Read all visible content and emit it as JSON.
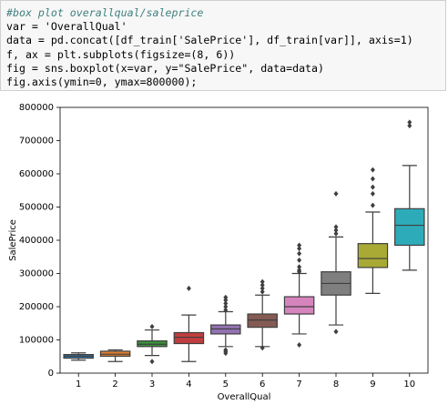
{
  "code": [
    "#box plot overallqual/saleprice",
    "var = 'OverallQual'",
    "data = pd.concat([df_train['SalePrice'], df_train[var]], axis=1)",
    "f, ax = plt.subplots(figsize=(8, 6))",
    "fig = sns.boxplot(x=var, y=\"SalePrice\", data=data)",
    "fig.axis(ymin=0, ymax=800000);"
  ],
  "chart_data": {
    "type": "box",
    "xlabel": "OverallQual",
    "ylabel": "SalePrice",
    "categories": [
      "1",
      "2",
      "3",
      "4",
      "5",
      "6",
      "7",
      "8",
      "9",
      "10"
    ],
    "colors": [
      "#3274a1",
      "#e1812c",
      "#3a923a",
      "#c03d3e",
      "#9372b2",
      "#845b53",
      "#d684bd",
      "#7f7f7f",
      "#a9aa35",
      "#2eabb8"
    ],
    "q1": [
      45000,
      51000,
      80000,
      89000,
      118000,
      138000,
      178000,
      235000,
      318000,
      385000
    ],
    "median": [
      51000,
      57000,
      87000,
      108000,
      133000,
      160000,
      200000,
      270000,
      345000,
      445000
    ],
    "q3": [
      56000,
      66000,
      97000,
      122000,
      145000,
      178000,
      230000,
      305000,
      390000,
      495000
    ],
    "whisker_low": [
      39000,
      35000,
      53000,
      35000,
      80000,
      80000,
      118000,
      145000,
      240000,
      310000
    ],
    "whisker_high": [
      61000,
      70000,
      130000,
      175000,
      185000,
      235000,
      300000,
      410000,
      485000,
      625000
    ],
    "outliers": [
      [],
      [],
      [
        35000,
        140000
      ],
      [
        255000
      ],
      [
        60000,
        65000,
        70000,
        190000,
        200000,
        210000,
        220000,
        228000
      ],
      [
        76000,
        245000,
        255000,
        265000,
        275000
      ],
      [
        85000,
        305000,
        310000,
        320000,
        340000,
        360000,
        375000,
        385000
      ],
      [
        125000,
        420000,
        430000,
        440000,
        540000
      ],
      [
        505000,
        540000,
        560000,
        585000,
        612000
      ],
      [
        745000,
        755000
      ]
    ],
    "ylim": [
      0,
      800000
    ],
    "yticks": [
      0,
      100000,
      200000,
      300000,
      400000,
      500000,
      600000,
      700000,
      800000
    ]
  }
}
